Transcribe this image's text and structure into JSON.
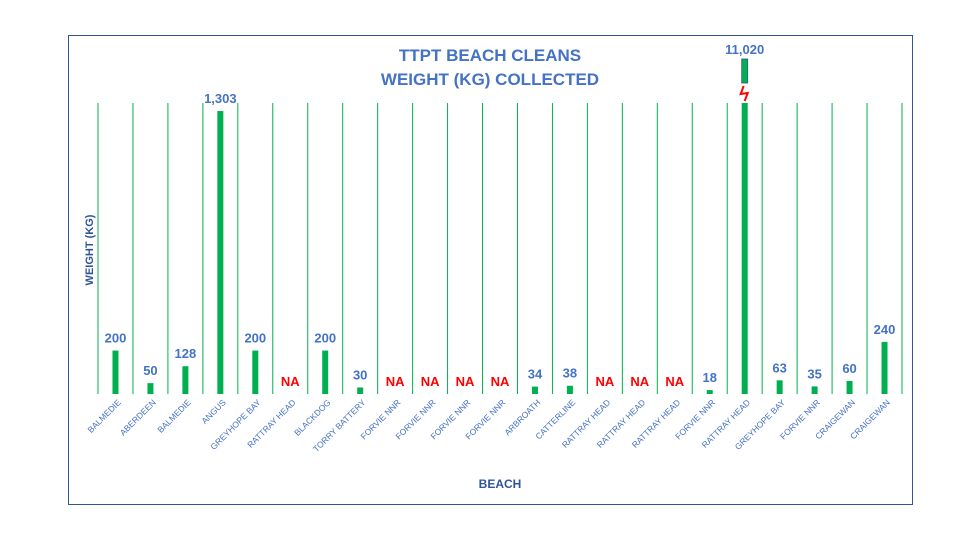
{
  "chart_data": {
    "type": "bar",
    "title": "TTPT BEACH CLEANS",
    "subtitle": "WEIGHT (KG) COLLECTED",
    "xlabel": "BEACH",
    "ylabel": "WEIGHT (KG)",
    "ylim": [
      0,
      1340
    ],
    "axis_break": true,
    "categories": [
      "BALMEDIE",
      "ABERDEEN",
      "BALMEDIE",
      "ANGUS",
      "GREYHOPE BAY",
      "RATTRAY HEAD",
      "BLACKDOG",
      "TORRY BATTERY",
      "FORVIE NNR",
      "FORVIE NNR",
      "FORVIE NNR",
      "FORVIE NNR",
      "ARBROATH",
      "CATTERLINE",
      "RATTRAY HEAD",
      "RATTRAY HEAD",
      "RATTRAY HEAD",
      "FORVIE NNR",
      "RATTRAY HEAD",
      "GREYHOPE BAY",
      "FORVIE NNR",
      "CRAIGEWAN",
      "CRAIGEWAN"
    ],
    "values": [
      200,
      50,
      128,
      1303,
      200,
      null,
      200,
      30,
      null,
      null,
      null,
      null,
      34,
      38,
      null,
      null,
      null,
      18,
      11020,
      63,
      35,
      60,
      240
    ],
    "value_labels": [
      "200",
      "50",
      "128",
      "1,303",
      "200",
      "NA",
      "200",
      "30",
      "NA",
      "NA",
      "NA",
      "NA",
      "34",
      "38",
      "NA",
      "NA",
      "NA",
      "18",
      "11,020",
      "63",
      "35",
      "60",
      "240"
    ],
    "grid": true,
    "colors": {
      "bar": "#00B050",
      "gridline": "#00B050",
      "text": "#4472C4",
      "na": "#FF0000",
      "break": "#FF0000",
      "border": "#2F5597"
    }
  }
}
